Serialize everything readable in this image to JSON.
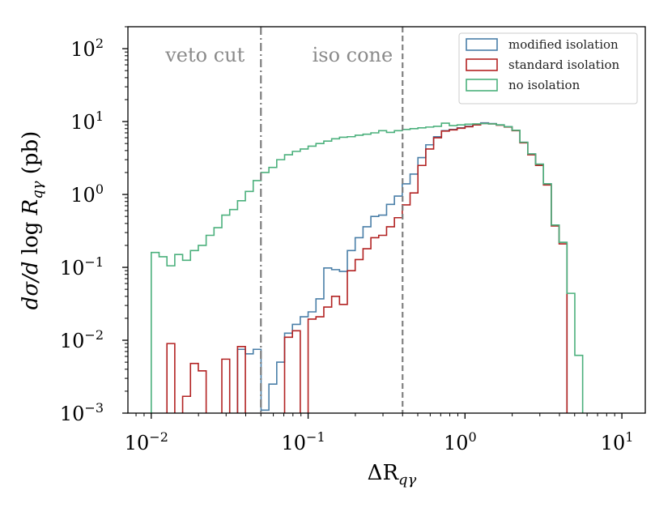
{
  "chart_data": {
    "type": "step-histogram",
    "xscale": "log",
    "yscale": "log",
    "xlim": [
      0.0071,
      14.1
    ],
    "ylim": [
      0.001,
      200
    ],
    "xlabel": "ΔR_qγ",
    "ylabel": "dσ/d log R_qγ (pb)",
    "x_ticks": [
      {
        "value": 0.01,
        "base": "10",
        "exp": "−2"
      },
      {
        "value": 0.1,
        "base": "10",
        "exp": "−1"
      },
      {
        "value": 1,
        "base": "10",
        "exp": "0"
      },
      {
        "value": 10,
        "base": "10",
        "exp": "1"
      }
    ],
    "y_ticks": [
      {
        "value": 0.001,
        "base": "10",
        "exp": "−3"
      },
      {
        "value": 0.01,
        "base": "10",
        "exp": "−2"
      },
      {
        "value": 0.1,
        "base": "10",
        "exp": "−1"
      },
      {
        "value": 1,
        "base": "10",
        "exp": "0"
      },
      {
        "value": 10,
        "base": "10",
        "exp": "1"
      },
      {
        "value": 100,
        "base": "10",
        "exp": "2"
      }
    ],
    "vlines": [
      {
        "x": 0.05,
        "style": "dashdot",
        "label": "veto cut",
        "color": "#808080"
      },
      {
        "x": 0.4,
        "style": "dashed",
        "label": "iso cone",
        "color": "#808080"
      }
    ],
    "bins": {
      "log_start": -2.0,
      "log_width": 0.05,
      "count": 56
    },
    "series": [
      {
        "name": "modified isolation",
        "color": "#4a7fa8",
        "values": [
          0,
          0,
          0,
          0,
          0,
          0,
          0,
          0,
          0,
          0,
          0,
          0.0075,
          0.0065,
          0.0075,
          0.0011,
          0.0025,
          0.005,
          0.0125,
          0.0165,
          0.021,
          0.0245,
          0.037,
          0.098,
          0.093,
          0.088,
          0.17,
          0.255,
          0.36,
          0.5,
          0.52,
          0.73,
          0.95,
          1.4,
          1.9,
          3.2,
          4.8,
          6.2,
          7.5,
          7.8,
          8.2,
          8.6,
          9.2,
          9.6,
          9.4,
          9.0,
          8.5,
          7.6,
          5.2,
          3.6,
          2.6,
          1.4,
          0.38,
          0.22,
          0,
          0,
          0
        ]
      },
      {
        "name": "standard isolation",
        "color": "#b22222",
        "values": [
          0,
          0,
          0.009,
          0,
          0.0017,
          0.0048,
          0.0038,
          0,
          0,
          0.0055,
          0,
          0.0082,
          0,
          0,
          0,
          0,
          0,
          0.011,
          0.0135,
          0,
          0.0195,
          0.021,
          0.0285,
          0.04,
          0.031,
          0.09,
          0.128,
          0.18,
          0.255,
          0.275,
          0.36,
          0.48,
          0.72,
          1.05,
          2.5,
          4.2,
          6.0,
          7.4,
          7.7,
          8.1,
          8.5,
          9.0,
          9.4,
          9.3,
          8.9,
          8.4,
          7.5,
          5.1,
          3.5,
          2.5,
          1.35,
          0.37,
          0.21,
          0,
          0,
          0
        ]
      },
      {
        "name": "no isolation",
        "color": "#4bb07c",
        "values": [
          0.16,
          0.14,
          0.105,
          0.15,
          0.125,
          0.17,
          0.2,
          0.275,
          0.35,
          0.52,
          0.62,
          0.82,
          1.1,
          1.55,
          2.0,
          2.35,
          3.0,
          3.5,
          3.9,
          4.2,
          4.6,
          5.0,
          5.4,
          5.8,
          6.1,
          6.2,
          6.5,
          6.7,
          7.0,
          7.5,
          7.1,
          7.5,
          7.8,
          8.0,
          8.2,
          8.4,
          8.6,
          9.5,
          8.8,
          9.0,
          9.2,
          9.3,
          9.4,
          9.3,
          9.0,
          8.5,
          7.6,
          5.2,
          3.6,
          2.6,
          1.4,
          0.38,
          0.22,
          0.044,
          0.0062,
          0
        ]
      }
    ]
  },
  "legend": {
    "items": [
      {
        "label": "modified isolation",
        "color": "#4a7fa8"
      },
      {
        "label": "standard isolation",
        "color": "#b22222"
      },
      {
        "label": "no isolation",
        "color": "#4bb07c"
      }
    ]
  }
}
